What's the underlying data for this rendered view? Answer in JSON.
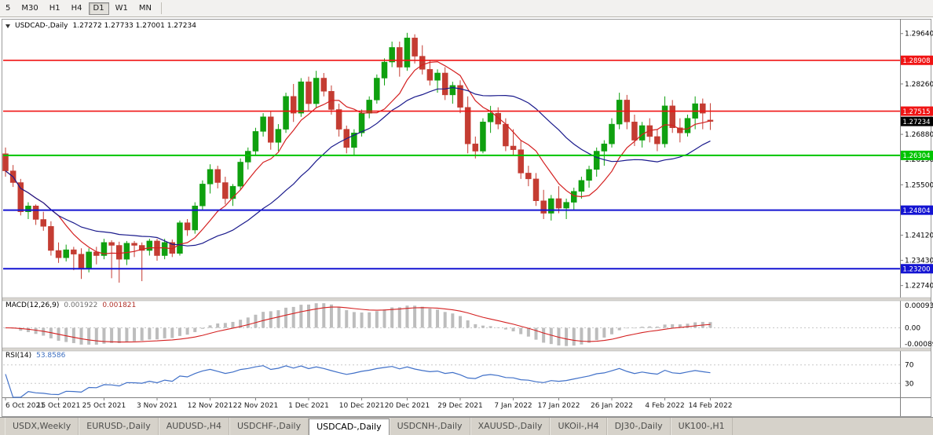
{
  "toolbar": {
    "timeframes": [
      "5",
      "M30",
      "H1",
      "H4",
      "D1",
      "W1",
      "MN"
    ],
    "active_index": 4
  },
  "main_chart": {
    "title": "USDCAD-,Daily",
    "ohlc": "1.27272 1.27733 1.27001 1.27234"
  },
  "chart_data": {
    "type": "candlestick",
    "symbol": "USDCAD-",
    "timeframe": "Daily",
    "title": "USDCAD-,Daily 1.27272 1.27733 1.27001 1.27234",
    "price_range": [
      1.2241,
      1.3
    ],
    "price_ticks": [
      1.2964,
      1.2826,
      1.2688,
      1.2619,
      1.255,
      1.2412,
      1.2343,
      1.2274
    ],
    "bull_color": "#0FA00F",
    "bear_color": "#C43C32",
    "x_labels": [
      {
        "label": "6 Oct 2021",
        "index": 0
      },
      {
        "label": "15 Oct 2021",
        "index": 7
      },
      {
        "label": "25 Oct 2021",
        "index": 13
      },
      {
        "label": "3 Nov 2021",
        "index": 20
      },
      {
        "label": "12 Nov 2021",
        "index": 27
      },
      {
        "label": "22 Nov 2021",
        "index": 33
      },
      {
        "label": "1 Dec 2021",
        "index": 40
      },
      {
        "label": "10 Dec 2021",
        "index": 47
      },
      {
        "label": "20 Dec 2021",
        "index": 53
      },
      {
        "label": "29 Dec 2021",
        "index": 60
      },
      {
        "label": "7 Jan 2022",
        "index": 67
      },
      {
        "label": "17 Jan 2022",
        "index": 73
      },
      {
        "label": "26 Jan 2022",
        "index": 80
      },
      {
        "label": "4 Feb 2022",
        "index": 87
      },
      {
        "label": "14 Feb 2022",
        "index": 93
      }
    ],
    "horizontal_lines": [
      {
        "price": 1.28908,
        "label": "1.28908",
        "color": "#F01414",
        "width": 1.6
      },
      {
        "price": 1.27515,
        "label": "1.27515",
        "color": "#F01414",
        "width": 1.6
      },
      {
        "price": 1.26304,
        "label": "1.26304",
        "color": "#00C400",
        "width": 2
      },
      {
        "price": 1.24804,
        "label": "1.24804",
        "color": "#1414D2",
        "width": 2
      },
      {
        "price": 1.232,
        "label": "1.23200",
        "color": "#1414D2",
        "width": 2
      }
    ],
    "current_price": {
      "price": 1.27234,
      "label": "1.27234",
      "bg": "#000000"
    },
    "moving_averages": [
      {
        "name": "ma-fast",
        "period": 8,
        "color": "#D42020"
      },
      {
        "name": "ma-slow",
        "period": 21,
        "color": "#1A1A8C"
      }
    ],
    "indicators": [
      {
        "name": "MACD",
        "title": "MACD(12,26,9)",
        "value_main": "0.001922",
        "value_signal": "0.001821",
        "params": [
          12,
          26,
          9
        ],
        "axis_labels": [
          "0.0009345",
          "0.00",
          "-0.0008900"
        ],
        "histogram_color": "#BDBDBD",
        "signal_color": "#D42020"
      },
      {
        "name": "RSI",
        "title": "RSI(14)",
        "value": "53.8586",
        "params": [
          14
        ],
        "levels": [
          70,
          30
        ],
        "color": "#4070C8"
      }
    ],
    "candles": [
      [
        1.2635,
        1.2652,
        1.2572,
        1.2588
      ],
      [
        1.2588,
        1.2604,
        1.2544,
        1.2556
      ],
      [
        1.2556,
        1.2566,
        1.2466,
        1.2476
      ],
      [
        1.2476,
        1.2502,
        1.2456,
        1.2492
      ],
      [
        1.2492,
        1.2496,
        1.244,
        1.2455
      ],
      [
        1.2455,
        1.2476,
        1.2424,
        1.2436
      ],
      [
        1.2436,
        1.245,
        1.2356,
        1.237
      ],
      [
        1.237,
        1.2392,
        1.2336,
        1.235
      ],
      [
        1.235,
        1.2386,
        1.234,
        1.2372
      ],
      [
        1.2372,
        1.238,
        1.2316,
        1.236
      ],
      [
        1.236,
        1.2376,
        1.2292,
        1.2322
      ],
      [
        1.2322,
        1.2376,
        1.231,
        1.2366
      ],
      [
        1.2366,
        1.238,
        1.2332,
        1.2356
      ],
      [
        1.2356,
        1.2402,
        1.2346,
        1.2392
      ],
      [
        1.2392,
        1.2398,
        1.2294,
        1.2384
      ],
      [
        1.2384,
        1.2394,
        1.2282,
        1.2346
      ],
      [
        1.2346,
        1.2396,
        1.233,
        1.239
      ],
      [
        1.239,
        1.2396,
        1.2352,
        1.2384
      ],
      [
        1.2384,
        1.2392,
        1.2286,
        1.237
      ],
      [
        1.237,
        1.2402,
        1.2356,
        1.2396
      ],
      [
        1.2396,
        1.2402,
        1.2342,
        1.2356
      ],
      [
        1.2356,
        1.2402,
        1.2346,
        1.2392
      ],
      [
        1.2392,
        1.24,
        1.2352,
        1.2362
      ],
      [
        1.2362,
        1.2452,
        1.2356,
        1.2446
      ],
      [
        1.2446,
        1.2456,
        1.241,
        1.2426
      ],
      [
        1.2426,
        1.2502,
        1.2416,
        1.2492
      ],
      [
        1.2492,
        1.2562,
        1.2482,
        1.2552
      ],
      [
        1.2552,
        1.2606,
        1.2526,
        1.2592
      ],
      [
        1.2592,
        1.2602,
        1.254,
        1.2556
      ],
      [
        1.2556,
        1.2572,
        1.2496,
        1.2512
      ],
      [
        1.2512,
        1.2552,
        1.2492,
        1.2546
      ],
      [
        1.2546,
        1.2622,
        1.2536,
        1.2612
      ],
      [
        1.2612,
        1.2652,
        1.2592,
        1.2642
      ],
      [
        1.2642,
        1.2706,
        1.2632,
        1.2696
      ],
      [
        1.2696,
        1.2746,
        1.2682,
        1.2736
      ],
      [
        1.2736,
        1.2752,
        1.2646,
        1.2666
      ],
      [
        1.2666,
        1.2716,
        1.2642,
        1.2702
      ],
      [
        1.2702,
        1.2802,
        1.2692,
        1.2792
      ],
      [
        1.2792,
        1.2826,
        1.2722,
        1.2746
      ],
      [
        1.2746,
        1.2842,
        1.2736,
        1.2832
      ],
      [
        1.2832,
        1.2846,
        1.2752,
        1.2772
      ],
      [
        1.2772,
        1.2862,
        1.2762,
        1.2842
      ],
      [
        1.2842,
        1.2856,
        1.2792,
        1.2806
      ],
      [
        1.2806,
        1.2822,
        1.2742,
        1.2756
      ],
      [
        1.2756,
        1.2772,
        1.2682,
        1.2702
      ],
      [
        1.2702,
        1.2712,
        1.2636,
        1.2652
      ],
      [
        1.2652,
        1.2702,
        1.2632,
        1.2692
      ],
      [
        1.2692,
        1.2756,
        1.2682,
        1.2746
      ],
      [
        1.2746,
        1.2792,
        1.2732,
        1.2782
      ],
      [
        1.2782,
        1.2852,
        1.2772,
        1.2842
      ],
      [
        1.2842,
        1.2896,
        1.2822,
        1.2886
      ],
      [
        1.2886,
        1.2942,
        1.2872,
        1.2926
      ],
      [
        1.2926,
        1.2942,
        1.2846,
        1.2872
      ],
      [
        1.2872,
        1.2966,
        1.2862,
        1.2952
      ],
      [
        1.2952,
        1.2962,
        1.2882,
        1.2902
      ],
      [
        1.2902,
        1.2932,
        1.2852,
        1.2866
      ],
      [
        1.2866,
        1.2892,
        1.2822,
        1.2836
      ],
      [
        1.2836,
        1.2866,
        1.2802,
        1.2856
      ],
      [
        1.2856,
        1.2872,
        1.2782,
        1.2796
      ],
      [
        1.2796,
        1.2832,
        1.2772,
        1.2822
      ],
      [
        1.2822,
        1.2836,
        1.2746,
        1.2762
      ],
      [
        1.2762,
        1.2792,
        1.2636,
        1.2662
      ],
      [
        1.2662,
        1.2682,
        1.2622,
        1.2642
      ],
      [
        1.2642,
        1.2732,
        1.2636,
        1.2722
      ],
      [
        1.2722,
        1.2766,
        1.2692,
        1.2746
      ],
      [
        1.2746,
        1.2762,
        1.2702,
        1.2716
      ],
      [
        1.2716,
        1.2732,
        1.2642,
        1.2656
      ],
      [
        1.2656,
        1.2702,
        1.2632,
        1.2646
      ],
      [
        1.2646,
        1.2672,
        1.2566,
        1.2582
      ],
      [
        1.2582,
        1.2602,
        1.2546,
        1.2566
      ],
      [
        1.2566,
        1.2582,
        1.2492,
        1.2506
      ],
      [
        1.2506,
        1.2536,
        1.2456,
        1.2472
      ],
      [
        1.2472,
        1.2522,
        1.2452,
        1.2512
      ],
      [
        1.2512,
        1.2546,
        1.2472,
        1.2486
      ],
      [
        1.2486,
        1.2512,
        1.2456,
        1.2502
      ],
      [
        1.2502,
        1.2542,
        1.2482,
        1.2532
      ],
      [
        1.2532,
        1.2572,
        1.2512,
        1.2562
      ],
      [
        1.2562,
        1.2602,
        1.2542,
        1.2592
      ],
      [
        1.2592,
        1.2652,
        1.2572,
        1.2642
      ],
      [
        1.2642,
        1.2672,
        1.2602,
        1.2662
      ],
      [
        1.2662,
        1.2732,
        1.2652,
        1.2716
      ],
      [
        1.2716,
        1.2802,
        1.2702,
        1.2782
      ],
      [
        1.2782,
        1.2796,
        1.2702,
        1.2722
      ],
      [
        1.2722,
        1.2742,
        1.2656,
        1.2672
      ],
      [
        1.2672,
        1.2722,
        1.2652,
        1.2712
      ],
      [
        1.2712,
        1.2732,
        1.2666,
        1.2682
      ],
      [
        1.2682,
        1.2702,
        1.2642,
        1.2662
      ],
      [
        1.2662,
        1.2792,
        1.2652,
        1.2766
      ],
      [
        1.2766,
        1.2782,
        1.2692,
        1.2706
      ],
      [
        1.2706,
        1.2732,
        1.2666,
        1.2692
      ],
      [
        1.2692,
        1.2742,
        1.2682,
        1.2732
      ],
      [
        1.2732,
        1.2792,
        1.2702,
        1.2772
      ],
      [
        1.2772,
        1.2786,
        1.2702,
        1.2746
      ],
      [
        1.27272,
        1.27733,
        1.27001,
        1.27234
      ]
    ]
  },
  "tabbar": {
    "tabs": [
      "USDX,Weekly",
      "EURUSD-,Daily",
      "AUDUSD-,H4",
      "USDCHF-,Daily",
      "USDCAD-,Daily",
      "USDCNH-,Daily",
      "XAUUSD-,Daily",
      "UKOil-,H4",
      "DJ30-,Daily",
      "UK100-,H1"
    ],
    "active_index": 4
  }
}
